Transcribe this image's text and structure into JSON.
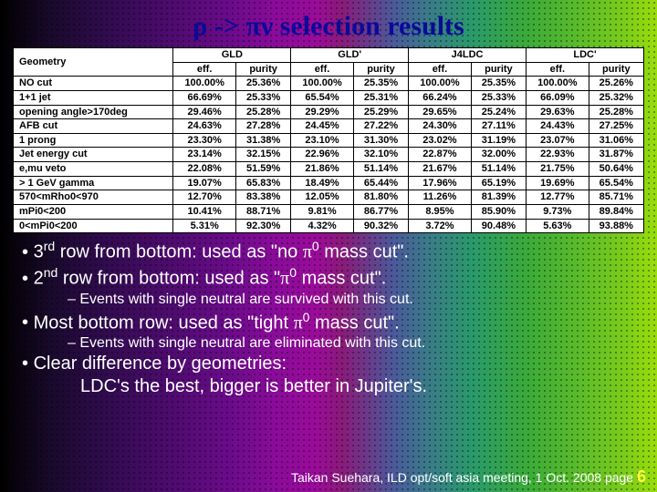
{
  "title_parts": [
    "ρ -> πν",
    " selection results"
  ],
  "table": {
    "geo_header": "Geometry",
    "groups": [
      "GLD",
      "GLD'",
      "J4LDC",
      "LDC'"
    ],
    "subcols": [
      "eff.",
      "purity"
    ],
    "rows": [
      {
        "label": "NO cut",
        "vals": [
          "100.00%",
          "25.36%",
          "100.00%",
          "25.35%",
          "100.00%",
          "25.35%",
          "100.00%",
          "25.26%"
        ]
      },
      {
        "label": "1+1 jet",
        "vals": [
          "66.69%",
          "25.33%",
          "65.54%",
          "25.31%",
          "66.24%",
          "25.33%",
          "66.09%",
          "25.32%"
        ]
      },
      {
        "label": "opening angle>170deg",
        "vals": [
          "29.46%",
          "25.28%",
          "29.29%",
          "25.29%",
          "29.65%",
          "25.24%",
          "29.63%",
          "25.28%"
        ]
      },
      {
        "label": "AFB cut",
        "vals": [
          "24.63%",
          "27.28%",
          "24.45%",
          "27.22%",
          "24.30%",
          "27.11%",
          "24.43%",
          "27.25%"
        ]
      },
      {
        "label": "1 prong",
        "vals": [
          "23.30%",
          "31.38%",
          "23.10%",
          "31.30%",
          "23.02%",
          "31.19%",
          "23.07%",
          "31.06%"
        ]
      },
      {
        "label": "Jet energy cut",
        "vals": [
          "23.14%",
          "32.15%",
          "22.96%",
          "32.10%",
          "22.87%",
          "32.00%",
          "22.93%",
          "31.87%"
        ]
      },
      {
        "label": "e,mu veto",
        "vals": [
          "22.08%",
          "51.59%",
          "21.86%",
          "51.14%",
          "21.67%",
          "51.14%",
          "21.75%",
          "50.64%"
        ]
      },
      {
        "label": "> 1 GeV gamma",
        "vals": [
          "19.07%",
          "65.83%",
          "18.49%",
          "65.44%",
          "17.96%",
          "65.19%",
          "19.69%",
          "65.54%"
        ]
      },
      {
        "label": "570<mRho0<970",
        "vals": [
          "12.70%",
          "83.38%",
          "12.05%",
          "81.80%",
          "11.26%",
          "81.39%",
          "12.77%",
          "85.71%"
        ]
      },
      {
        "label": "mPi0<200",
        "vals": [
          "10.41%",
          "88.71%",
          "9.81%",
          "86.77%",
          "8.95%",
          "85.90%",
          "9.73%",
          "89.84%"
        ]
      },
      {
        "label": "0<mPi0<200",
        "vals": [
          "5.31%",
          "92.30%",
          "4.32%",
          "90.32%",
          "3.72%",
          "90.48%",
          "5.63%",
          "93.88%"
        ]
      }
    ]
  },
  "bullets": {
    "b1_pre": "3",
    "b1_sup": "rd",
    "b1_mid": " row from bottom: used as \"no ",
    "b1_pi": "π",
    "b1_zero": "0",
    "b1_end": " mass cut\".",
    "b2_pre": "2",
    "b2_sup": "nd",
    "b2_mid": " row from bottom: used as \"",
    "b2_pi": "π",
    "b2_zero": "0",
    "b2_end": " mass cut\".",
    "b2_sub": "Events with single neutral are survived with this cut.",
    "b3_pre": "Most bottom row: used as \"tight ",
    "b3_pi": "π",
    "b3_zero": "0",
    "b3_end": " mass cut\".",
    "b3_sub": "Events with single neutral are eliminated with this cut.",
    "b4a": "Clear difference by geometries:",
    "b4b": "LDC's the best, bigger is better in Jupiter's."
  },
  "footer": {
    "text": "Taikan Suehara, ILD opt/soft asia meeting, 1 Oct. 2008  page ",
    "page": "6"
  }
}
